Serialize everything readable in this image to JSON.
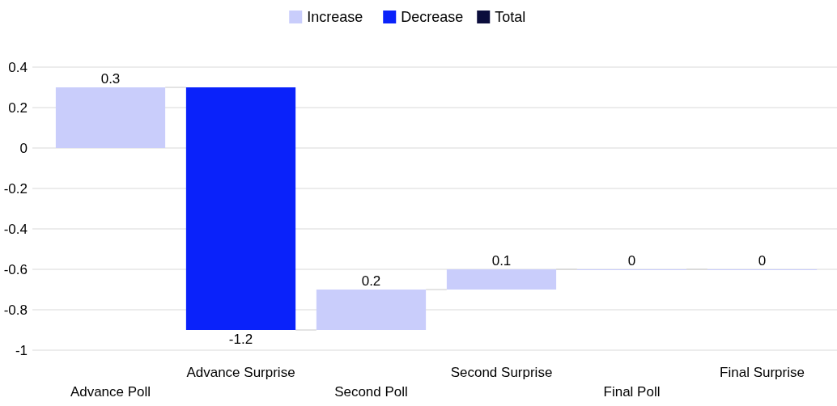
{
  "chart_data": {
    "type": "bar",
    "categories": [
      "Advance Poll",
      "Advance Surprise",
      "Second Poll",
      "Second Surprise",
      "Final Poll",
      "Final Surprise"
    ],
    "series": [
      {
        "name": "Increase",
        "color": "#c9cdfb",
        "values": [
          0.3,
          null,
          0.2,
          0.1,
          0,
          0
        ],
        "base": [
          0,
          null,
          -0.9,
          -0.7,
          -0.6,
          -0.6
        ]
      },
      {
        "name": "Decrease",
        "color": "#0a22fa",
        "values": [
          null,
          -1.2,
          null,
          null,
          null,
          null
        ],
        "base": [
          null,
          0.3,
          null,
          null,
          null,
          null
        ]
      },
      {
        "name": "Total",
        "color": "#0b0d3c",
        "values": [
          null,
          null,
          null,
          null,
          null,
          null
        ]
      }
    ],
    "ylim": [
      -1,
      0.4
    ],
    "yticks": [
      -1,
      -0.8,
      -0.6,
      -0.4,
      -0.2,
      0,
      0.2,
      0.4
    ],
    "grid": "y",
    "legend": "top",
    "data_labels": true
  }
}
